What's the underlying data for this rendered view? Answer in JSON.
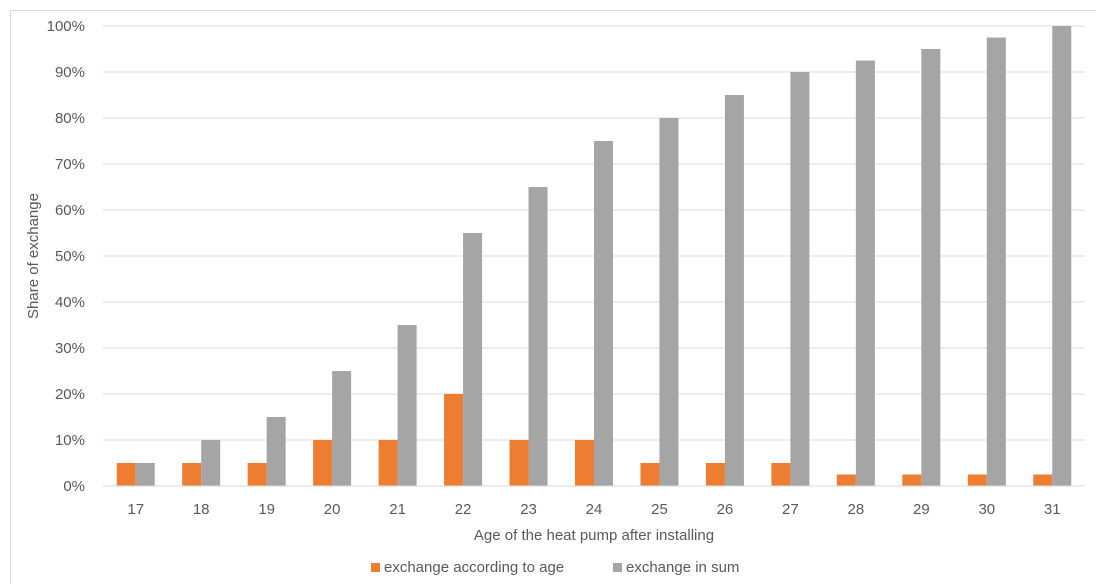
{
  "chart_data": {
    "type": "bar",
    "title": "",
    "xlabel": "Age of the heat pump after installing",
    "ylabel": "Share of exchange",
    "categories": [
      "17",
      "18",
      "19",
      "20",
      "21",
      "22",
      "23",
      "24",
      "25",
      "26",
      "27",
      "28",
      "29",
      "30",
      "31"
    ],
    "series": [
      {
        "name": "exchange according to age",
        "color": "#ed7d31",
        "values": [
          5,
          5,
          5,
          10,
          10,
          20,
          10,
          10,
          5,
          5,
          5,
          2.5,
          2.5,
          2.5,
          2.5
        ]
      },
      {
        "name": "exchange in sum",
        "color": "#a5a5a5",
        "values": [
          5,
          10,
          15,
          25,
          35,
          55,
          65,
          75,
          80,
          85,
          90,
          92.5,
          95,
          97.5,
          100
        ]
      }
    ],
    "ylim": [
      0,
      100
    ],
    "yticks": [
      "0%",
      "10%",
      "20%",
      "30%",
      "40%",
      "50%",
      "60%",
      "70%",
      "80%",
      "90%",
      "100%"
    ],
    "grid": true,
    "legend_position": "bottom"
  }
}
